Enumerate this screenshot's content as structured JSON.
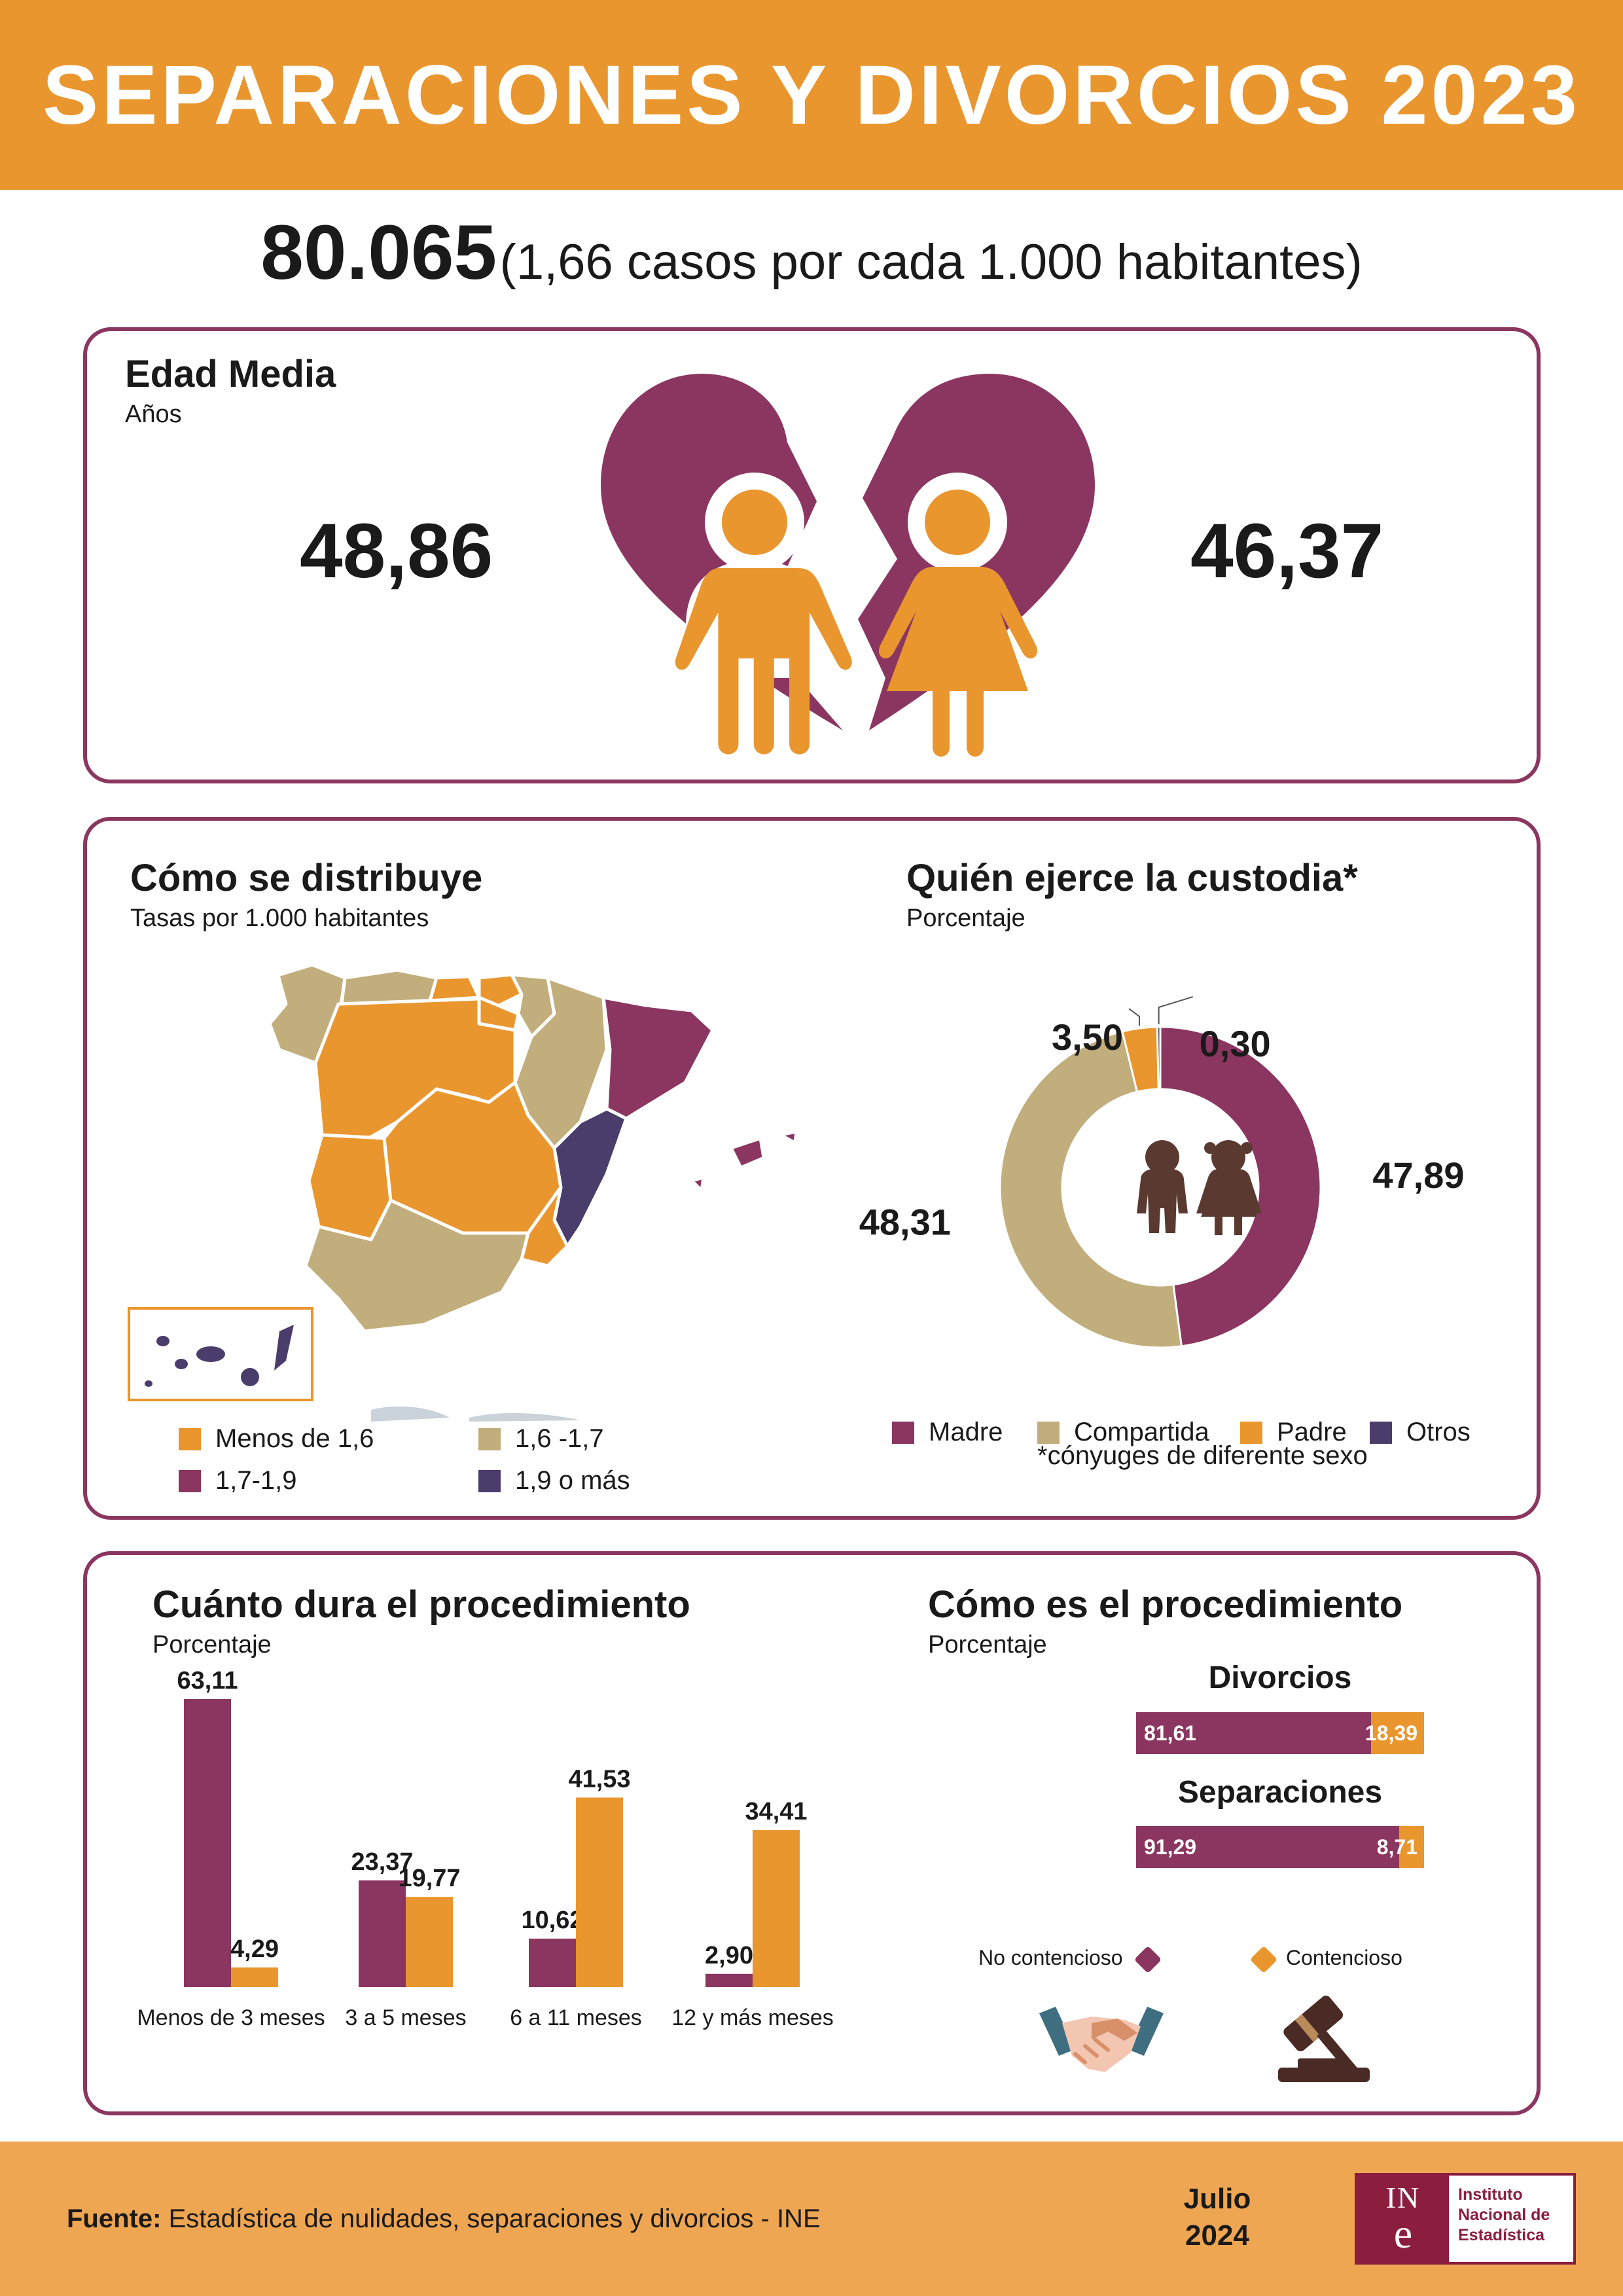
{
  "header": {
    "title": "SEPARACIONES Y DIVORCIOS 2023"
  },
  "summary": {
    "total": "80.065",
    "rate_text": "(1,66 casos por cada 1.000 habitantes)"
  },
  "age": {
    "title": "Edad Media",
    "subtitle": "Años",
    "man": "48,86",
    "woman": "46,37"
  },
  "distribution": {
    "title": "Cómo se distribuye",
    "subtitle": "Tasas por 1.000 habitantes",
    "legend": [
      {
        "label": "Menos de 1,6",
        "color": "#E9962E"
      },
      {
        "label": "1,6 -1,7",
        "color": "#C1AE7C"
      },
      {
        "label": "1,7-1,9",
        "color": "#8B3660"
      },
      {
        "label": "1,9 o más",
        "color": "#4A3D6B"
      }
    ]
  },
  "colors": {
    "orange": "#E9962E",
    "purple": "#8B3660",
    "beige": "#C1AE7C",
    "navy": "#4A3D6B",
    "brown": "#5A3A30"
  },
  "icons": [
    "broken-heart-icon",
    "man-icon",
    "woman-icon",
    "children-icon",
    "handshake-icon",
    "gavel-icon"
  ],
  "custody": {
    "title": "Quién ejerce la custodia*",
    "subtitle": "Porcentaje",
    "note": "*cónyuges de diferente sexo"
  },
  "duration": {
    "title": "Cuánto dura el procedimiento",
    "subtitle": "Porcentaje"
  },
  "procedure": {
    "title": "Cómo es el procedimiento",
    "subtitle": "Porcentaje",
    "legend_nc": "No contencioso",
    "legend_c": "Contencioso",
    "divorces": {
      "label": "Divorcios",
      "no_contencioso": "81,61",
      "contencioso": "18,39"
    },
    "separations": {
      "label": "Separaciones",
      "no_contencioso": "91,29",
      "contencioso": "8,71"
    }
  },
  "chart_data": [
    {
      "type": "pie",
      "title": "Quién ejerce la custodia*",
      "subtitle": "Porcentaje",
      "categories": [
        "Madre",
        "Compartida",
        "Padre",
        "Otros"
      ],
      "values": [
        47.89,
        48.31,
        3.5,
        0.3
      ],
      "labels": [
        "47,89",
        "48,31",
        "3,50",
        "0,30"
      ],
      "colors": [
        "#8B3660",
        "#C1AE7C",
        "#E9962E",
        "#4A3D6B"
      ],
      "legend_position": "bottom"
    },
    {
      "type": "bar",
      "title": "Cuánto dura el procedimiento",
      "subtitle": "Porcentaje",
      "categories": [
        "Menos de 3 meses",
        "3 a 5 meses",
        "6 a 11 meses",
        "12 y más meses"
      ],
      "series": [
        {
          "values": [
            63.11,
            23.37,
            10.62,
            2.9
          ],
          "labels": [
            "63,11",
            "23,37",
            "10,62",
            "2,90"
          ],
          "color": "#8B3660"
        },
        {
          "values": [
            4.29,
            19.77,
            41.53,
            34.41
          ],
          "labels": [
            "4,29",
            "19,77",
            "41,53",
            "34,41"
          ],
          "color": "#E9962E"
        }
      ],
      "ylim": [
        0,
        63.11
      ],
      "grid": false
    },
    {
      "type": "bar",
      "title": "Cómo es el procedimiento",
      "subtitle": "Porcentaje",
      "stacked": true,
      "orientation": "horizontal",
      "categories": [
        "Divorcios",
        "Separaciones"
      ],
      "series": [
        {
          "name": "No contencioso",
          "values": [
            81.61,
            91.29
          ],
          "color": "#8B3660"
        },
        {
          "name": "Contencioso",
          "values": [
            18.39,
            8.71
          ],
          "color": "#E9962E"
        }
      ]
    }
  ],
  "footer": {
    "source_label": "Fuente:",
    "source_text": "Estadística de nulidades, separaciones y divorcios - INE",
    "date_month": "Julio",
    "date_year": "2024",
    "logo_mark_top": "IN",
    "logo_mark_bottom": "e",
    "logo_line1": "Instituto",
    "logo_line2": "Nacional de",
    "logo_line3": "Estadística"
  }
}
